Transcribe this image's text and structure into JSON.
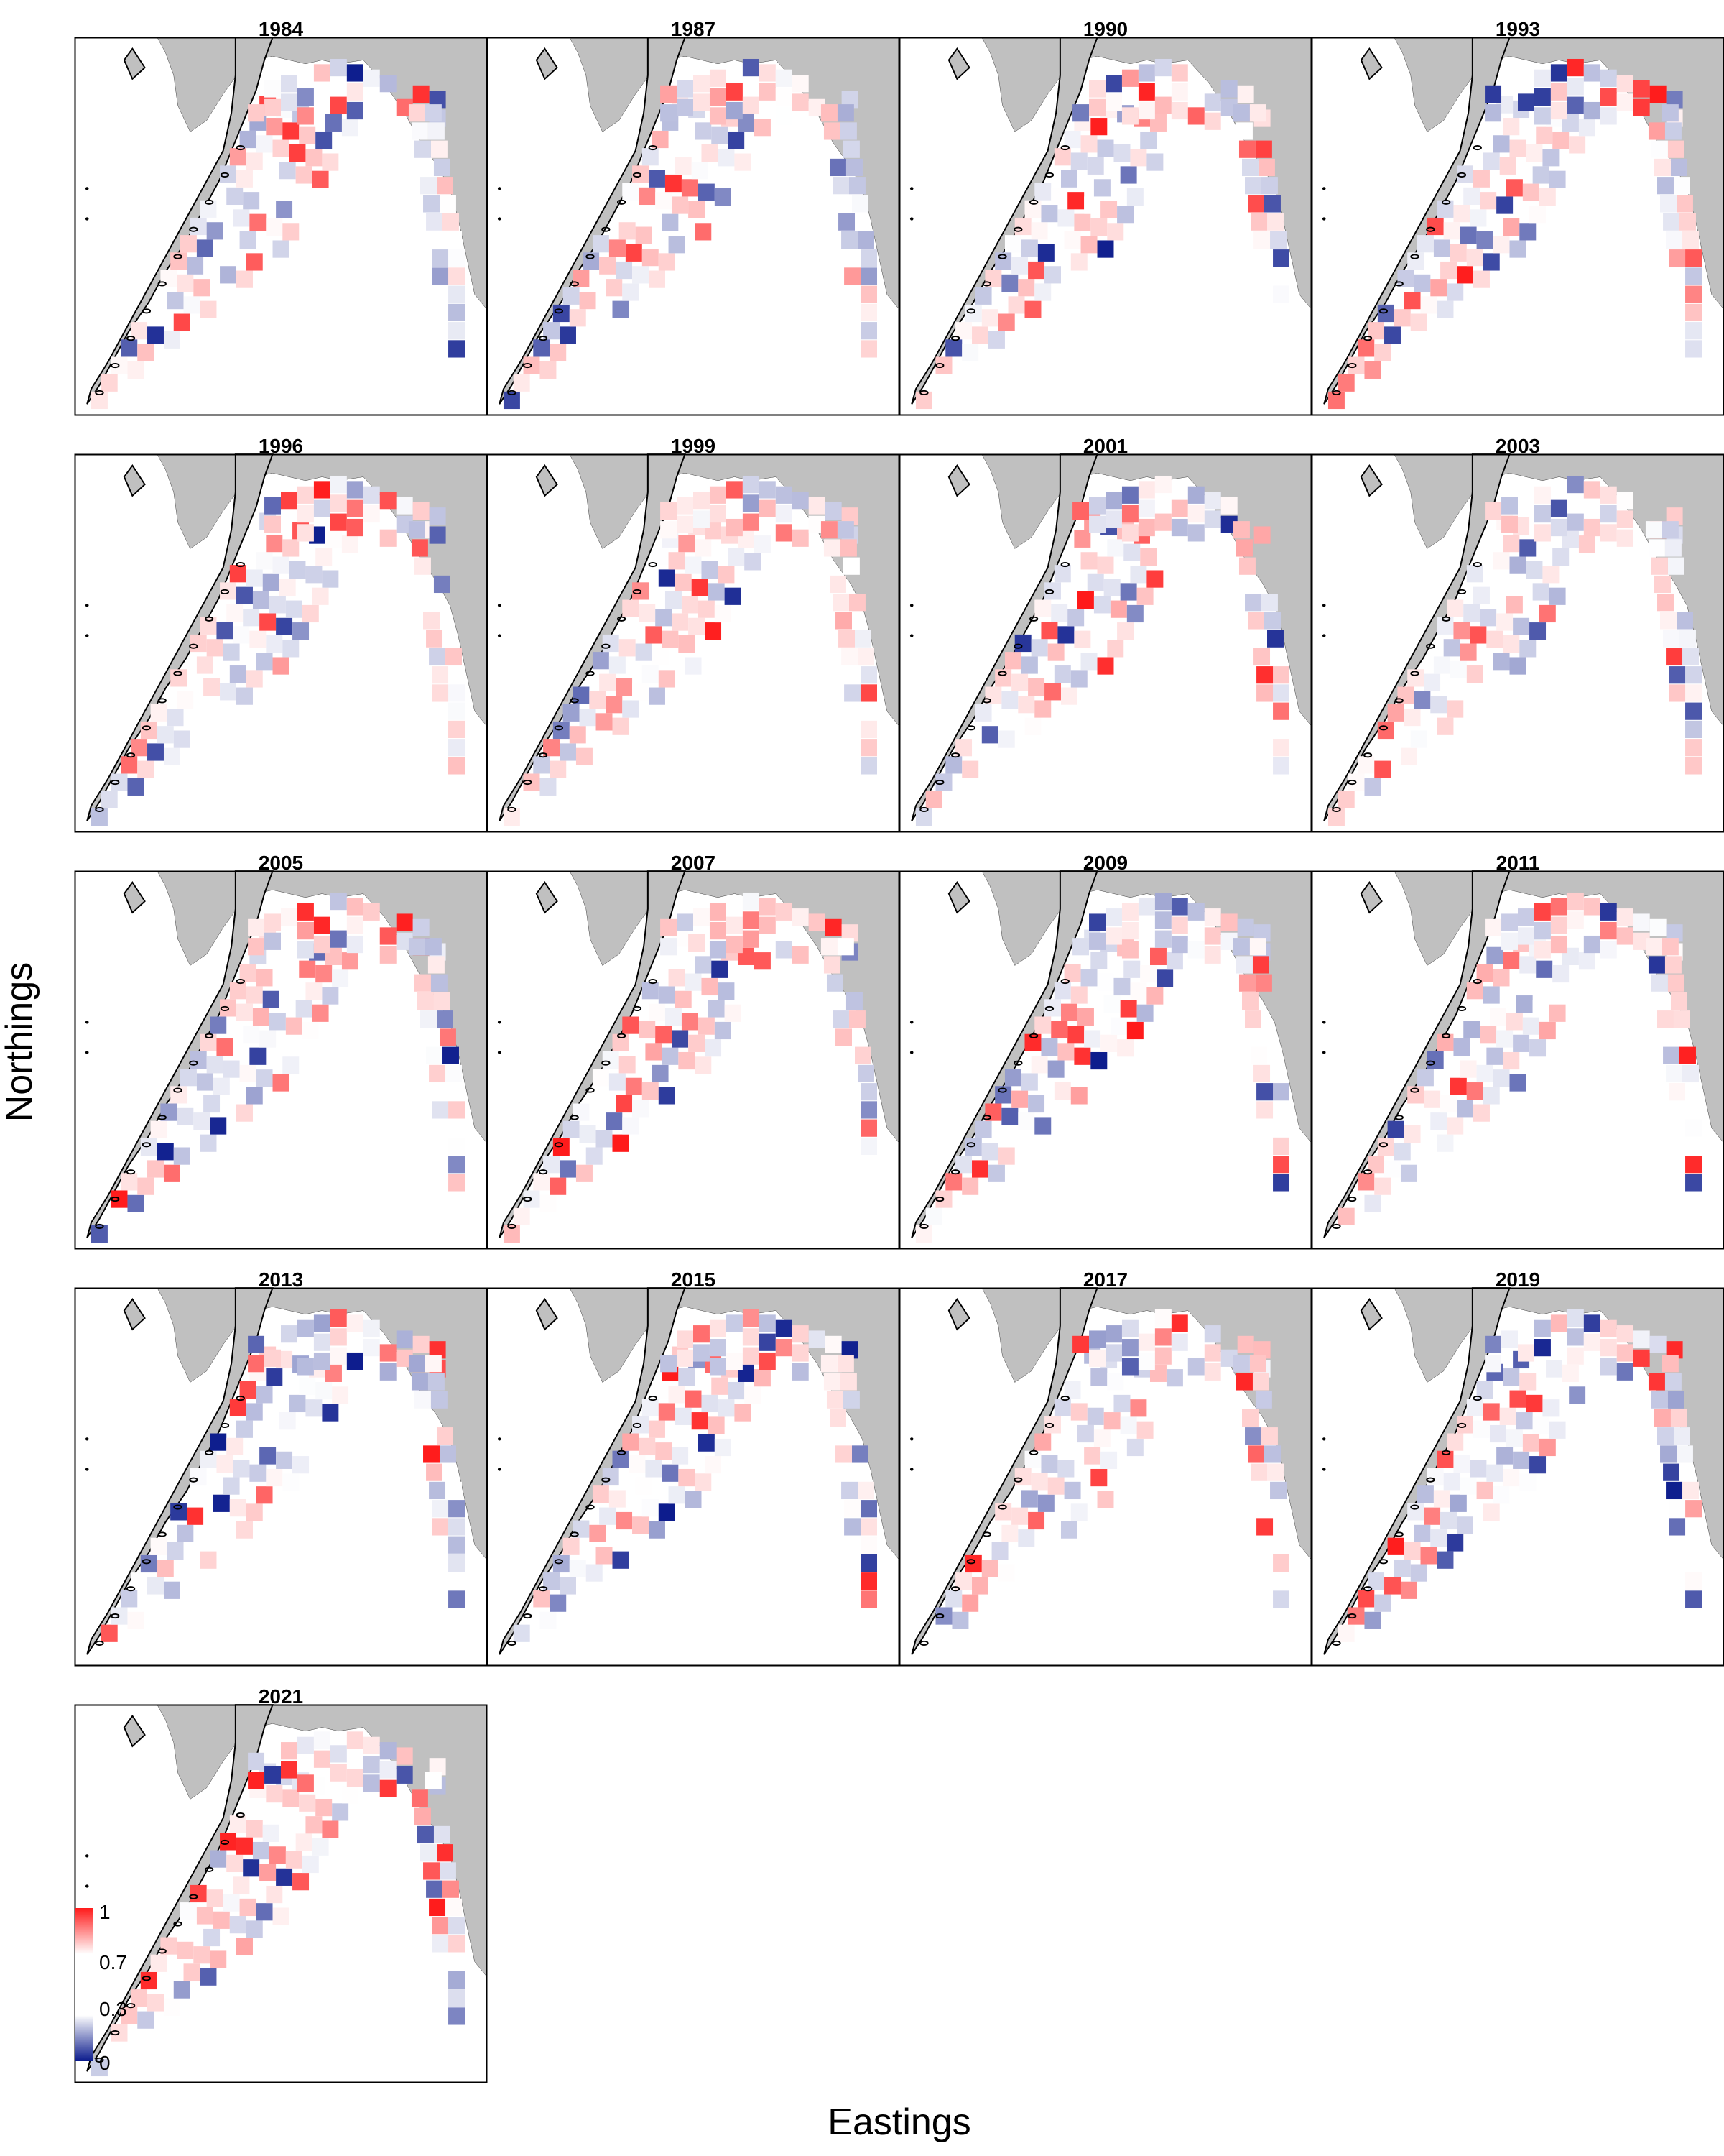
{
  "figure": {
    "xlabel": "Eastings",
    "ylabel": "Northings",
    "panels": [
      "1984",
      "1987",
      "1990",
      "1993",
      "1996",
      "1999",
      "2001",
      "2003",
      "2005",
      "2007",
      "2009",
      "2011",
      "2013",
      "2015",
      "2017",
      "2019",
      "2021"
    ]
  },
  "colorbar": {
    "ticks": [
      "1",
      "0.7",
      "0.3",
      "0"
    ],
    "colors": {
      "low": "#0a1a8c",
      "mid": "#ffffff",
      "high": "#ff1a1a"
    }
  },
  "colors": {
    "land": "#c0c0c0",
    "coast": "#000000",
    "frame": "#000000",
    "background": "#ffffff"
  }
}
